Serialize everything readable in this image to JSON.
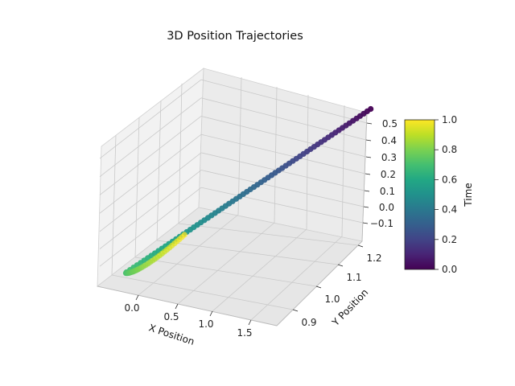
{
  "chart_data": {
    "type": "scatter",
    "title": "3D Position Trajectories",
    "xlabel": "X Position",
    "ylabel": "Y Position",
    "zlabel": "",
    "x_ticks": [
      "0.0",
      "0.5",
      "1.0",
      "1.5"
    ],
    "y_ticks": [
      "0.9",
      "1.0",
      "1.1",
      "1.2"
    ],
    "z_ticks": [
      "−0.1",
      "0.0",
      "0.1",
      "0.2",
      "0.3",
      "0.4",
      "0.5"
    ],
    "colorbar": {
      "label": "Time",
      "ticks": [
        "0.0",
        "0.2",
        "0.4",
        "0.6",
        "0.8",
        "1.0"
      ],
      "colormap": "viridis",
      "range": [
        0,
        1
      ]
    },
    "grid": true,
    "trajectory": {
      "points": 100,
      "time_range": [
        0,
        1
      ],
      "start": {
        "x": 1.62,
        "y": 1.27,
        "z": 0.53
      },
      "turn": {
        "x": -0.12,
        "y": 0.9,
        "z": -0.16
      },
      "end": {
        "x": -0.07,
        "y": 1.12,
        "z": -0.17
      }
    }
  }
}
